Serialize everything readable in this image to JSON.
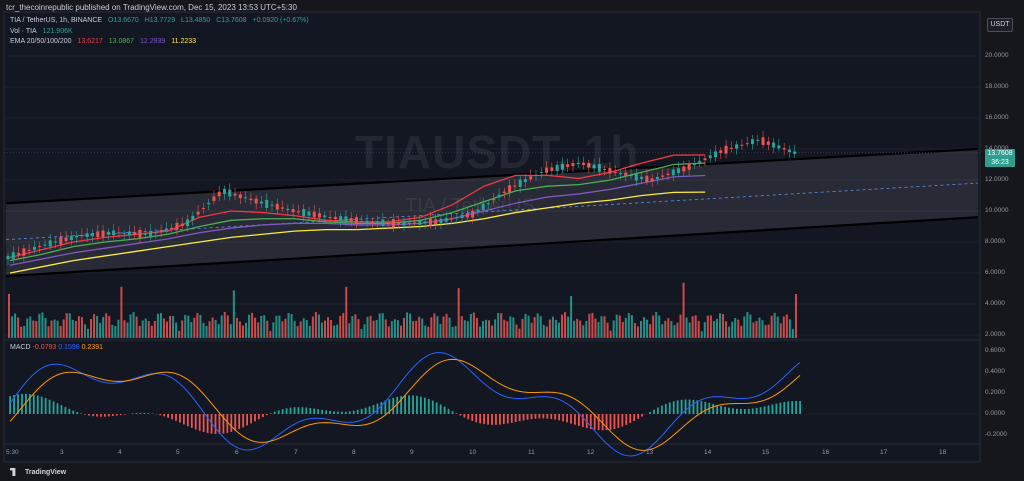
{
  "header": {
    "published": "tcr_thecoinrepublic published on TradingView.com, Dec 15, 2023 13:53 UTC+5:30",
    "symbol_line": "TIA / TetherUS, 1h, BINANCE",
    "ohlc": {
      "o": "O13.6670",
      "h": "H13.7729",
      "l": "L13.4850",
      "c": "C13.7608",
      "chg": "+0.0920 (+0.67%)"
    },
    "vol": {
      "label": "Vol · TIA",
      "value": "121.906K"
    },
    "ema": {
      "label": "EMA 20/50/100/200",
      "values": [
        "13.6217",
        "13.0867",
        "12.2939",
        "11.2233"
      ],
      "colors": [
        "#f23645",
        "#4caf50",
        "#7e57c2",
        "#ffeb3b"
      ]
    },
    "macd": {
      "label": "MACD",
      "hist": "-0.0793",
      "macd": "0.1598",
      "signal": "0.2391",
      "colors": [
        "#ef5350",
        "#2962ff",
        "#ff9800"
      ]
    }
  },
  "watermark": {
    "symbol": "TIAUSDT, 1h",
    "name": "TIA / TetherUS"
  },
  "price_scale": {
    "currency": "USDT",
    "labels": [
      "20.0000",
      "18.0000",
      "16.0000",
      "14.0000",
      "12.0000",
      "10.0000",
      "8.0000",
      "6.0000",
      "4.0000",
      "2.0000"
    ],
    "last_price": "13.7608",
    "countdown": "36:23"
  },
  "macd_scale": [
    "0.6000",
    "0.4000",
    "0.2000",
    "0.0000",
    "-0.2000"
  ],
  "time_labels": [
    "5:30",
    "3",
    "4",
    "5",
    "6",
    "7",
    "8",
    "9",
    "10",
    "11",
    "12",
    "13",
    "14",
    "15",
    "16",
    "17",
    "18"
  ],
  "footer": {
    "brand": "TradingView"
  },
  "chart_data": {
    "type": "line",
    "title": "TIAUSDT, 1h",
    "x": [
      0,
      1,
      2,
      3,
      4,
      5,
      6,
      7,
      8,
      9,
      10,
      11,
      12,
      13,
      14,
      15,
      16,
      17,
      18,
      19,
      20,
      21,
      22,
      23,
      24,
      25
    ],
    "series": [
      {
        "name": "TIA / TetherUS",
        "values": [
          7.0,
          7.8,
          8.4,
          8.6,
          8.5,
          9.2,
          11.3,
          10.6,
          10.0,
          9.6,
          9.3,
          9.2,
          9.3,
          9.8,
          11.4,
          12.6,
          13.1,
          12.5,
          12.0,
          12.8,
          13.9,
          14.6,
          13.76,
          13.76,
          13.76,
          13.76
        ]
      },
      {
        "name": "EMA 20",
        "values": [
          7.0,
          7.5,
          8.0,
          8.3,
          8.5,
          8.7,
          9.6,
          10.0,
          9.9,
          9.7,
          9.4,
          9.3,
          9.3,
          9.6,
          10.4,
          11.6,
          12.3,
          12.3,
          12.1,
          12.5,
          13.1,
          13.6,
          13.62,
          13.62,
          13.62,
          13.62
        ]
      },
      {
        "name": "EMA 50",
        "values": [
          6.8,
          7.2,
          7.7,
          8.0,
          8.2,
          8.5,
          9.0,
          9.4,
          9.5,
          9.5,
          9.3,
          9.2,
          9.2,
          9.4,
          9.9,
          10.6,
          11.3,
          11.6,
          11.7,
          12.0,
          12.5,
          13.0,
          13.09,
          13.09,
          13.09,
          13.09
        ]
      },
      {
        "name": "EMA 100",
        "values": [
          6.5,
          6.9,
          7.3,
          7.6,
          7.9,
          8.2,
          8.6,
          8.9,
          9.1,
          9.2,
          9.2,
          9.1,
          9.1,
          9.2,
          9.5,
          10.0,
          10.5,
          10.9,
          11.1,
          11.4,
          11.8,
          12.2,
          12.29,
          12.29,
          12.29,
          12.29
        ]
      },
      {
        "name": "EMA 200",
        "values": [
          6.0,
          6.4,
          6.8,
          7.1,
          7.4,
          7.7,
          8.0,
          8.3,
          8.5,
          8.7,
          8.8,
          8.8,
          8.9,
          9.0,
          9.2,
          9.5,
          9.9,
          10.2,
          10.5,
          10.7,
          11.0,
          11.2,
          11.22,
          11.22,
          11.22,
          11.22
        ]
      }
    ],
    "channel": {
      "upper": [
        10.5,
        14.0
      ],
      "lower": [
        5.8,
        9.6
      ]
    },
    "ylim": [
      0,
      20
    ],
    "grid": true
  },
  "colors": {
    "up": "#26a69a",
    "down": "#ef5350",
    "channel": "#000000",
    "bg": "#16171c"
  }
}
